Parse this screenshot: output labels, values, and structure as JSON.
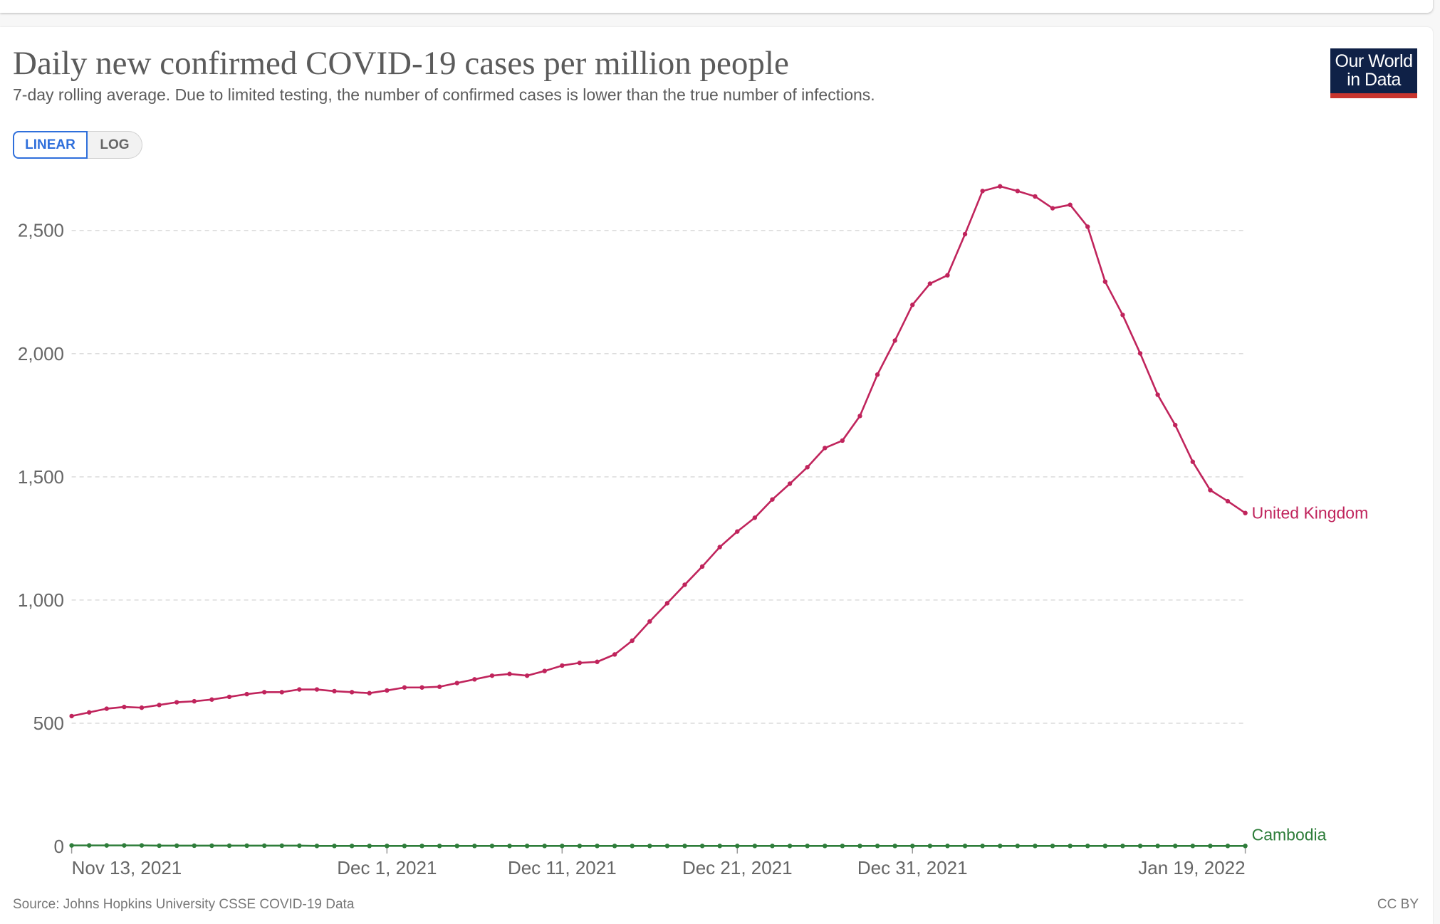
{
  "header": {
    "title": "Daily new confirmed COVID-19 cases per million people",
    "subtitle": "7-day rolling average. Due to limited testing, the number of confirmed cases is lower than the true number of infections.",
    "logo": "Our World in Data",
    "logo_line1": "Our World",
    "logo_line2": "in Data"
  },
  "scale_toggle": {
    "linear": "LINEAR",
    "log": "LOG",
    "selected": "LINEAR"
  },
  "footer": {
    "source": "Source: Johns Hopkins University CSSE COVID-19 Data",
    "license": "CC BY"
  },
  "chart_data": {
    "type": "line",
    "title": "Daily new confirmed COVID-19 cases per million people",
    "x_start": "2021-11-13",
    "x_end": "2022-01-19",
    "xticks": [
      {
        "day": 0,
        "label": "Nov 13, 2021"
      },
      {
        "day": 18,
        "label": "Dec 1, 2021"
      },
      {
        "day": 28,
        "label": "Dec 11, 2021"
      },
      {
        "day": 38,
        "label": "Dec 21, 2021"
      },
      {
        "day": 48,
        "label": "Dec 31, 2021"
      },
      {
        "day": 67,
        "label": "Jan 19, 2022"
      }
    ],
    "yticks": [
      {
        "value": 0,
        "label": "0"
      },
      {
        "value": 500,
        "label": "500"
      },
      {
        "value": 1000,
        "label": "1,000"
      },
      {
        "value": 1500,
        "label": "1,500"
      },
      {
        "value": 2000,
        "label": "2,000"
      },
      {
        "value": 2500,
        "label": "2,500"
      }
    ],
    "ylim": [
      0,
      2500
    ],
    "grid": true,
    "series": [
      {
        "name": "United Kingdom",
        "color": "#c0245c",
        "values": [
          529,
          544,
          559,
          566,
          563,
          574,
          585,
          589,
          596,
          607,
          618,
          626,
          626,
          637,
          637,
          630,
          626,
          622,
          633,
          645,
          645,
          648,
          663,
          678,
          693,
          700,
          693,
          712,
          734,
          745,
          749,
          779,
          835,
          913,
          987,
          1062,
          1136,
          1215,
          1278,
          1334,
          1408,
          1472,
          1539,
          1617,
          1647,
          1747,
          1915,
          2053,
          2198,
          2284,
          2318,
          2485,
          2660,
          2679,
          2660,
          2638,
          2590,
          2604,
          2515,
          2292,
          2157,
          2001,
          1833,
          1710,
          1561,
          1446,
          1401,
          1353
        ]
      },
      {
        "name": "Cambodia",
        "color": "#2e7d3a",
        "values": [
          4,
          4,
          4,
          4,
          4,
          3,
          3,
          3,
          3,
          3,
          3,
          3,
          3,
          3,
          2,
          2,
          2,
          2,
          2,
          2,
          2,
          2,
          2,
          2,
          2,
          2,
          2,
          2,
          2,
          2,
          2,
          2,
          2,
          2,
          2,
          2,
          2,
          2,
          2,
          2,
          2,
          2,
          2,
          2,
          2,
          2,
          2,
          2,
          2,
          2,
          2,
          2,
          2,
          2,
          2,
          2,
          2,
          2,
          2,
          2,
          2,
          2,
          2,
          2,
          2,
          2,
          2,
          2
        ]
      }
    ]
  }
}
